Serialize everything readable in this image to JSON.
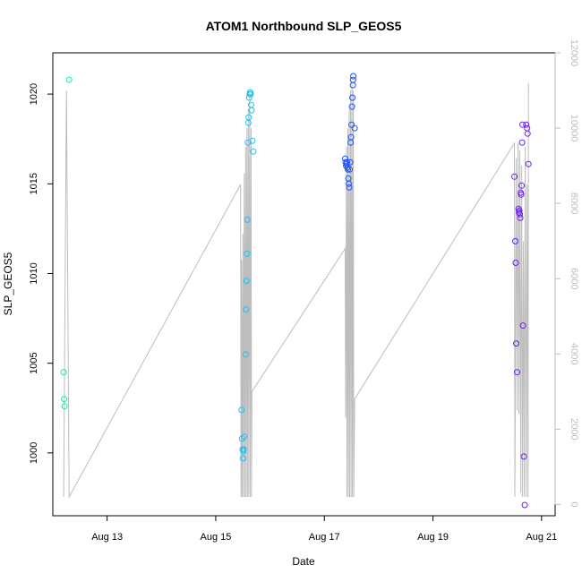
{
  "chart_data": {
    "type": "scatter",
    "title": "ATOM1 Northbound SLP_GEOS5",
    "xlabel": "Date",
    "ylabel": "SLP_GEOS5",
    "x_ticks": [
      "Aug 13",
      "Aug 15",
      "Aug 17",
      "Aug 19",
      "Aug 21"
    ],
    "y_ticks": [
      "1000",
      "1005",
      "1010",
      "1015",
      "1020"
    ],
    "y2_ticks": [
      "0",
      "2000",
      "4000",
      "6000",
      "8000",
      "10000",
      "12000"
    ],
    "xlim": [
      "2016-08-12 00:00",
      "2016-08-21 06:00"
    ],
    "ylim": [
      996.5,
      1022.3
    ],
    "y2lim": [
      -300,
      12000
    ],
    "colors": {
      "background_line": "#bdbdbd",
      "axis": "#000000",
      "right_axis": "#bdbdbd",
      "point_gradient": [
        "#19e3a6",
        "#19c6ee",
        "#1990ee",
        "#1d4cf0",
        "#6a1de8"
      ]
    },
    "series": [
      {
        "points": [
          {
            "x": "2016-08-12 04:48",
            "y": 1004.5,
            "color": "#1de3a0"
          },
          {
            "x": "2016-08-12 05:00",
            "y": 1003.0,
            "color": "#1de3a0"
          },
          {
            "x": "2016-08-12 05:12",
            "y": 1002.6,
            "color": "#1de3a0"
          },
          {
            "x": "2016-08-12 07:12",
            "y": 1020.8,
            "color": "#19f0a8"
          },
          {
            "x": "2016-08-15 11:24",
            "y": 1002.4,
            "color": "#20c0f0"
          },
          {
            "x": "2016-08-15 11:36",
            "y": 1000.8,
            "color": "#20c0f0"
          },
          {
            "x": "2016-08-15 11:48",
            "y": 1000.2,
            "color": "#20c0f0"
          },
          {
            "x": "2016-08-15 12:00",
            "y": 999.7,
            "color": "#20c0f0"
          },
          {
            "x": "2016-08-15 12:12",
            "y": 1000.1,
            "color": "#20c0f0"
          },
          {
            "x": "2016-08-15 12:24",
            "y": 1000.2,
            "color": "#20c0f0"
          },
          {
            "x": "2016-08-15 12:36",
            "y": 1000.9,
            "color": "#20c0f0"
          },
          {
            "x": "2016-08-15 13:12",
            "y": 1005.5,
            "color": "#20c0f0"
          },
          {
            "x": "2016-08-15 13:24",
            "y": 1008.0,
            "color": "#20c0f0"
          },
          {
            "x": "2016-08-15 13:36",
            "y": 1009.6,
            "color": "#20c0f0"
          },
          {
            "x": "2016-08-15 13:48",
            "y": 1011.1,
            "color": "#20c0f0"
          },
          {
            "x": "2016-08-15 14:00",
            "y": 1013.0,
            "color": "#20c0f0"
          },
          {
            "x": "2016-08-15 14:12",
            "y": 1017.3,
            "color": "#20c0f0"
          },
          {
            "x": "2016-08-15 14:24",
            "y": 1018.4,
            "color": "#20c0f0"
          },
          {
            "x": "2016-08-15 14:36",
            "y": 1018.7,
            "color": "#20c0f0"
          },
          {
            "x": "2016-08-15 14:48",
            "y": 1019.8,
            "color": "#20c0f0"
          },
          {
            "x": "2016-08-15 15:00",
            "y": 1020.0,
            "color": "#20c0f0"
          },
          {
            "x": "2016-08-15 15:12",
            "y": 1020.1,
            "color": "#20c0f0"
          },
          {
            "x": "2016-08-15 15:24",
            "y": 1020.0,
            "color": "#20c0f0"
          },
          {
            "x": "2016-08-15 15:36",
            "y": 1019.4,
            "color": "#20c0f0"
          },
          {
            "x": "2016-08-15 15:48",
            "y": 1019.1,
            "color": "#20c0f0"
          },
          {
            "x": "2016-08-15 16:12",
            "y": 1017.4,
            "color": "#20c0f0"
          },
          {
            "x": "2016-08-15 16:36",
            "y": 1016.8,
            "color": "#20c0f0"
          },
          {
            "x": "2016-08-17 09:12",
            "y": 1016.4,
            "color": "#2050f0"
          },
          {
            "x": "2016-08-17 09:24",
            "y": 1016.2,
            "color": "#2050f0"
          },
          {
            "x": "2016-08-17 09:36",
            "y": 1016.0,
            "color": "#2050f0"
          },
          {
            "x": "2016-08-17 09:48",
            "y": 1016.1,
            "color": "#2050f0"
          },
          {
            "x": "2016-08-17 10:00",
            "y": 1016.2,
            "color": "#2050f0"
          },
          {
            "x": "2016-08-17 10:12",
            "y": 1015.9,
            "color": "#2050f0"
          },
          {
            "x": "2016-08-17 10:24",
            "y": 1015.8,
            "color": "#2050f0"
          },
          {
            "x": "2016-08-17 10:36",
            "y": 1015.3,
            "color": "#2050f0"
          },
          {
            "x": "2016-08-17 10:48",
            "y": 1015.0,
            "color": "#2050f0"
          },
          {
            "x": "2016-08-17 11:00",
            "y": 1014.8,
            "color": "#2050f0"
          },
          {
            "x": "2016-08-17 11:12",
            "y": 1015.8,
            "color": "#2050f0"
          },
          {
            "x": "2016-08-17 11:24",
            "y": 1016.2,
            "color": "#2050f0"
          },
          {
            "x": "2016-08-17 11:36",
            "y": 1017.3,
            "color": "#2050f0"
          },
          {
            "x": "2016-08-17 11:48",
            "y": 1017.6,
            "color": "#2050f0"
          },
          {
            "x": "2016-08-17 12:00",
            "y": 1018.3,
            "color": "#2050f0"
          },
          {
            "x": "2016-08-17 12:12",
            "y": 1019.3,
            "color": "#2050f0"
          },
          {
            "x": "2016-08-17 12:24",
            "y": 1019.8,
            "color": "#2050f0"
          },
          {
            "x": "2016-08-17 12:36",
            "y": 1020.5,
            "color": "#2050f0"
          },
          {
            "x": "2016-08-17 12:42",
            "y": 1020.8,
            "color": "#2050f0"
          },
          {
            "x": "2016-08-17 12:48",
            "y": 1021.0,
            "color": "#2050f0"
          },
          {
            "x": "2016-08-17 13:24",
            "y": 1018.1,
            "color": "#2050f0"
          },
          {
            "x": "2016-08-20 12:00",
            "y": 1015.4,
            "color": "#6a20e8"
          },
          {
            "x": "2016-08-20 12:24",
            "y": 1011.8,
            "color": "#6a20e8"
          },
          {
            "x": "2016-08-20 12:36",
            "y": 1010.6,
            "color": "#6a20e8"
          },
          {
            "x": "2016-08-20 12:48",
            "y": 1006.1,
            "color": "#6a20e8"
          },
          {
            "x": "2016-08-20 13:12",
            "y": 1004.5,
            "color": "#6a20e8"
          },
          {
            "x": "2016-08-20 13:48",
            "y": 1013.6,
            "color": "#6a20e8"
          },
          {
            "x": "2016-08-20 14:00",
            "y": 1013.4,
            "color": "#6a20e8"
          },
          {
            "x": "2016-08-20 14:12",
            "y": 1013.5,
            "color": "#6a20e8"
          },
          {
            "x": "2016-08-20 14:24",
            "y": 1013.3,
            "color": "#6a20e8"
          },
          {
            "x": "2016-08-20 14:36",
            "y": 1013.1,
            "color": "#6a20e8"
          },
          {
            "x": "2016-08-20 14:48",
            "y": 1014.5,
            "color": "#6a20e8"
          },
          {
            "x": "2016-08-20 15:00",
            "y": 1014.4,
            "color": "#6a20e8"
          },
          {
            "x": "2016-08-20 15:12",
            "y": 1014.9,
            "color": "#6a20e8"
          },
          {
            "x": "2016-08-20 15:24",
            "y": 1017.3,
            "color": "#6a20e8"
          },
          {
            "x": "2016-08-20 15:36",
            "y": 1018.3,
            "color": "#6a20e8"
          },
          {
            "x": "2016-08-20 15:48",
            "y": 1007.1,
            "color": "#6a20e8"
          },
          {
            "x": "2016-08-20 16:12",
            "y": 999.8,
            "color": "#6a20e8"
          },
          {
            "x": "2016-08-20 16:36",
            "y": 997.1,
            "color": "#6a20e8"
          },
          {
            "x": "2016-08-20 17:12",
            "y": 1018.3,
            "color": "#6a20e8"
          },
          {
            "x": "2016-08-20 17:36",
            "y": 1018.1,
            "color": "#6a20e8"
          },
          {
            "x": "2016-08-20 17:48",
            "y": 1017.8,
            "color": "#6a20e8"
          },
          {
            "x": "2016-08-20 18:12",
            "y": 1016.1,
            "color": "#6a20e8"
          }
        ]
      }
    ],
    "secondary_line": {
      "axis": "right",
      "color": "#bdbdbd",
      "points": [
        [
          "2016-08-12 04:48",
          200
        ],
        [
          "2016-08-12 06:00",
          11000
        ],
        [
          "2016-08-12 07:12",
          200
        ],
        [
          "2016-08-15 11:00",
          8500
        ],
        [
          "2016-08-15 11:12",
          200
        ],
        [
          "2016-08-15 11:24",
          6500
        ],
        [
          "2016-08-15 11:36",
          200
        ],
        [
          "2016-08-15 12:00",
          7200
        ],
        [
          "2016-08-15 12:12",
          200
        ],
        [
          "2016-08-15 12:36",
          8800
        ],
        [
          "2016-08-15 12:48",
          200
        ],
        [
          "2016-08-15 13:12",
          9500
        ],
        [
          "2016-08-15 13:24",
          200
        ],
        [
          "2016-08-15 13:48",
          10000
        ],
        [
          "2016-08-15 14:00",
          200
        ],
        [
          "2016-08-15 14:24",
          10500
        ],
        [
          "2016-08-15 14:36",
          200
        ],
        [
          "2016-08-15 15:00",
          11000
        ],
        [
          "2016-08-15 15:12",
          200
        ],
        [
          "2016-08-15 15:36",
          10000
        ],
        [
          "2016-08-15 15:48",
          200
        ],
        [
          "2016-08-15 16:00",
          3000
        ],
        [
          "2016-08-17 09:12",
          6800
        ],
        [
          "2016-08-17 09:24",
          2300
        ],
        [
          "2016-08-17 09:48",
          9500
        ],
        [
          "2016-08-17 10:00",
          200
        ],
        [
          "2016-08-17 10:24",
          10000
        ],
        [
          "2016-08-17 10:36",
          200
        ],
        [
          "2016-08-17 11:00",
          10500
        ],
        [
          "2016-08-17 11:12",
          200
        ],
        [
          "2016-08-17 11:36",
          11000
        ],
        [
          "2016-08-17 11:48",
          200
        ],
        [
          "2016-08-17 12:12",
          11200
        ],
        [
          "2016-08-17 12:24",
          200
        ],
        [
          "2016-08-17 12:48",
          11000
        ],
        [
          "2016-08-17 13:00",
          200
        ],
        [
          "2016-08-17 13:24",
          2800
        ],
        [
          "2016-08-20 12:00",
          9600
        ],
        [
          "2016-08-20 12:12",
          200
        ],
        [
          "2016-08-20 12:48",
          9200
        ],
        [
          "2016-08-20 13:12",
          2500
        ],
        [
          "2016-08-20 13:36",
          9600
        ],
        [
          "2016-08-20 14:00",
          2400
        ],
        [
          "2016-08-20 14:24",
          9400
        ],
        [
          "2016-08-20 14:48",
          300
        ],
        [
          "2016-08-20 15:12",
          9000
        ],
        [
          "2016-08-20 15:36",
          200
        ],
        [
          "2016-08-20 16:00",
          7000
        ],
        [
          "2016-08-20 16:24",
          200
        ],
        [
          "2016-08-20 16:48",
          9500
        ],
        [
          "2016-08-20 17:12",
          200
        ],
        [
          "2016-08-20 17:36",
          8500
        ],
        [
          "2016-08-20 18:00",
          200
        ],
        [
          "2016-08-20 18:12",
          11200
        ]
      ]
    }
  }
}
